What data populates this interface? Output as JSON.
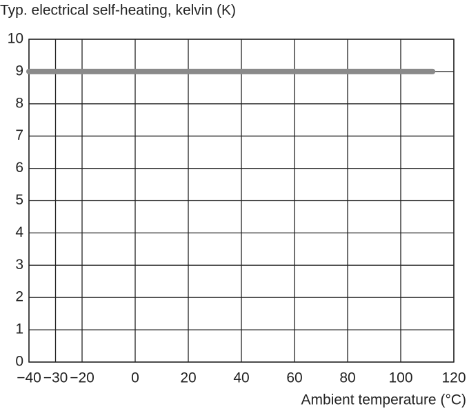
{
  "chart_data": {
    "type": "line",
    "ylabel": "Typ. electrical self-heating, kelvin (K)",
    "xlabel": "Ambient temperature (°C)",
    "x": [
      -40,
      112
    ],
    "series": [
      {
        "color": "#8a8a8a",
        "values": [
          9,
          9
        ]
      }
    ],
    "xlim": [
      -40,
      120
    ],
    "xticks": [
      {
        "value": -40,
        "label": "−40"
      },
      {
        "value": -30,
        "label": "−30"
      },
      {
        "value": -20,
        "label": "−20"
      },
      0,
      20,
      40,
      60,
      80,
      100,
      120
    ],
    "ylim": [
      0,
      10
    ],
    "yticks": [
      0,
      1,
      2,
      3,
      4,
      5,
      6,
      7,
      8,
      9,
      10
    ],
    "grid": true
  }
}
